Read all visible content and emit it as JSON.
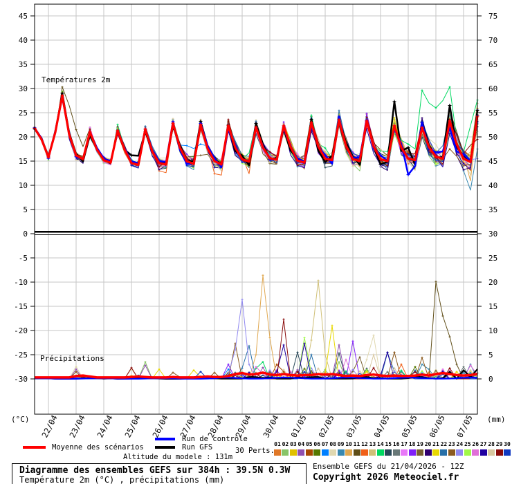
{
  "chart": {
    "temp_label": "Températures 2m",
    "precip_label": "Précipitations",
    "left_unit": "(°C)",
    "right_unit": "(mm)",
    "x_labels": [
      "22/04",
      "23/04",
      "24/04",
      "25/04",
      "26/04",
      "27/04",
      "28/04",
      "29/04",
      "30/04",
      "01/05",
      "02/05",
      "03/05",
      "04/05",
      "05/05",
      "06/05",
      "07/05"
    ],
    "left_ticks_temp": [
      45,
      40,
      35,
      30,
      25,
      20,
      15,
      10,
      5,
      0
    ],
    "left_ticks_precip": [
      -5,
      -10,
      -15,
      -20,
      -25,
      -30
    ],
    "right_ticks_temp": [
      75,
      70,
      65,
      60,
      55,
      50,
      45,
      40,
      35,
      30
    ],
    "right_ticks_precip": [
      25,
      20,
      15,
      10,
      5,
      0
    ],
    "grid_color": "#c6c6c6",
    "axis_color": "#000000"
  },
  "legend": {
    "mean_label": "Moyenne des scénarios",
    "mean_color": "#ff0000",
    "control_label": "Run de contrôle",
    "control_color": "#0000ff",
    "gfs_label": "Run GFS",
    "gfs_color": "#000000",
    "perts_label": "30 Perts.",
    "members": [
      {
        "num": "01",
        "color": "#E07828"
      },
      {
        "num": "02",
        "color": "#88C468"
      },
      {
        "num": "03",
        "color": "#E0C000"
      },
      {
        "num": "04",
        "color": "#9050B0"
      },
      {
        "num": "05",
        "color": "#A84800"
      },
      {
        "num": "06",
        "color": "#567800"
      },
      {
        "num": "07",
        "color": "#0080FF"
      },
      {
        "num": "08",
        "color": "#E0D8B0"
      },
      {
        "num": "09",
        "color": "#3888B0"
      },
      {
        "num": "10",
        "color": "#E0A850"
      },
      {
        "num": "11",
        "color": "#604E18"
      },
      {
        "num": "12",
        "color": "#F06018"
      },
      {
        "num": "13",
        "color": "#D0C078"
      },
      {
        "num": "14",
        "color": "#00D860"
      },
      {
        "num": "15",
        "color": "#284858"
      },
      {
        "num": "16",
        "color": "#687878"
      },
      {
        "num": "17",
        "color": "#E878F8"
      },
      {
        "num": "18",
        "color": "#8020F8"
      },
      {
        "num": "19",
        "color": "#786030"
      },
      {
        "num": "20",
        "color": "#300070"
      },
      {
        "num": "21",
        "color": "#E8D800"
      },
      {
        "num": "22",
        "color": "#2870A8"
      },
      {
        "num": "23",
        "color": "#8B5A20"
      },
      {
        "num": "24",
        "color": "#9088F0"
      },
      {
        "num": "25",
        "color": "#A0F848"
      },
      {
        "num": "26",
        "color": "#E070D8"
      },
      {
        "num": "27",
        "color": "#2000A0"
      },
      {
        "num": "28",
        "color": "#D8C8A0"
      },
      {
        "num": "29",
        "color": "#880808"
      },
      {
        "num": "30",
        "color": "#1038C0"
      }
    ]
  },
  "altitude_note": "Altitude du modele : 131m",
  "footer": {
    "line1": "Diagramme des ensembles GEFS sur 384h : 39.5N 0.3W",
    "line2": "Température 2m (°C) , précipitations (mm)"
  },
  "run_info": {
    "line1": "Ensemble GEFS du 21/04/2026 - 12Z",
    "line2": "Copyright 2026 Meteociel.fr"
  },
  "chart_data": [
    {
      "type": "line",
      "name": "temperature_2m",
      "title": "Températures 2m",
      "x_start": "21/04 12Z",
      "x_step_hours": 6,
      "x_total_hours": 384,
      "ylabel": "°C",
      "ylim_left": [
        0,
        47
      ],
      "ylim_right": [
        30,
        77
      ],
      "grid": true,
      "mean": [
        21.8,
        19.5,
        15.8,
        21.0,
        28.5,
        20.5,
        16.2,
        15.4,
        21.0,
        17.4,
        15.2,
        14.7,
        21.3,
        17.4,
        14.6,
        14.2,
        21.6,
        17.0,
        14.6,
        14.3,
        22.8,
        17.8,
        15.0,
        14.4,
        22.5,
        17.6,
        15.0,
        14.3,
        22.3,
        17.8,
        15.4,
        14.9,
        22.0,
        17.8,
        15.6,
        15.3,
        22.3,
        17.9,
        15.1,
        14.7,
        23.0,
        18.0,
        15.5,
        15.2,
        23.5,
        18.2,
        15.4,
        15.0,
        23.3,
        18.0,
        15.4,
        15.0,
        22.3,
        17.8,
        15.5,
        15.2,
        21.9,
        17.9,
        15.9,
        15.5,
        23.3,
        18.5,
        15.5,
        14.8,
        24.3
      ],
      "spread": [
        0.4,
        0.6,
        0.7,
        0.8,
        1.2,
        1.2,
        1.0,
        0.9,
        1.2,
        1.0,
        0.9,
        0.9,
        1.1,
        1.0,
        1.0,
        1.0,
        1.0,
        1.2,
        1.3,
        1.3,
        1.3,
        1.5,
        1.5,
        1.5,
        1.5,
        1.5,
        1.5,
        1.5,
        1.5,
        1.6,
        1.6,
        1.6,
        1.6,
        1.7,
        1.7,
        1.7,
        1.5,
        1.7,
        1.8,
        1.8,
        1.8,
        1.8,
        1.9,
        1.9,
        1.8,
        2.0,
        2.0,
        2.0,
        1.8,
        2.0,
        2.1,
        2.1,
        2.2,
        2.2,
        2.2,
        2.2,
        2.4,
        2.4,
        2.4,
        2.4,
        3.2,
        3.0,
        2.8,
        3.0,
        3.3
      ],
      "control_overrides": [
        [
          54,
          12.2
        ],
        [
          55,
          14.0
        ],
        [
          56,
          23.0
        ],
        [
          57,
          17.5
        ],
        [
          58,
          16.8
        ],
        [
          59,
          17.0
        ],
        [
          60,
          21.9
        ],
        [
          61,
          17.0
        ],
        [
          62,
          16.4
        ],
        [
          63,
          15.0
        ],
        [
          64,
          24.4
        ]
      ],
      "gfs_overrides": [
        [
          14,
          16.2
        ],
        [
          15,
          16.1
        ],
        [
          52,
          27.3
        ],
        [
          54,
          17.8
        ],
        [
          60,
          26.5
        ],
        [
          64,
          25.5
        ]
      ],
      "member_overrides": [
        [
          11,
          4,
          30.3
        ],
        [
          11,
          5,
          26.5
        ],
        [
          11,
          6,
          21.5
        ],
        [
          11,
          7,
          18.0
        ],
        [
          7,
          21,
          18.3
        ],
        [
          7,
          22,
          18.2
        ],
        [
          7,
          23,
          17.6
        ],
        [
          7,
          24,
          18.5
        ],
        [
          19,
          22,
          15.9
        ],
        [
          19,
          23,
          16.0
        ],
        [
          19,
          24,
          16.2
        ],
        [
          19,
          25,
          16.4
        ],
        [
          12,
          18,
          13.0
        ],
        [
          12,
          19,
          12.6
        ],
        [
          12,
          26,
          12.4
        ],
        [
          12,
          27,
          12.1
        ],
        [
          12,
          31,
          12.4
        ],
        [
          14,
          54,
          18.5
        ],
        [
          14,
          55,
          17.5
        ],
        [
          14,
          56,
          29.6
        ],
        [
          14,
          57,
          27.0
        ],
        [
          14,
          58,
          26.0
        ],
        [
          14,
          59,
          27.5
        ],
        [
          14,
          60,
          30.3
        ],
        [
          14,
          61,
          19.7
        ],
        [
          14,
          62,
          16.9
        ],
        [
          14,
          63,
          22.3
        ],
        [
          14,
          64,
          27.6
        ],
        [
          9,
          62,
          13.0
        ],
        [
          9,
          63,
          9.0
        ],
        [
          9,
          64,
          17.5
        ],
        [
          10,
          63,
          10.9
        ],
        [
          24,
          62,
          15.2
        ],
        [
          24,
          63,
          15.3
        ],
        [
          24,
          64,
          15.5
        ],
        [
          29,
          63,
          18.3
        ],
        [
          29,
          64,
          19.5
        ],
        [
          23,
          60,
          17.5
        ],
        [
          23,
          61,
          16.0
        ],
        [
          23,
          62,
          14.0
        ]
      ]
    },
    {
      "type": "line",
      "name": "precipitation",
      "title": "Précipitations",
      "unit": "mm",
      "ylim": [
        0,
        30
      ],
      "grid": true,
      "mean": [
        0.3,
        0.3,
        0.3,
        0.3,
        0.3,
        0.3,
        0.6,
        0.7,
        0.5,
        0.3,
        0.3,
        0.3,
        0.3,
        0.3,
        0.4,
        0.5,
        0.4,
        0.3,
        0.3,
        0.3,
        0.4,
        0.3,
        0.3,
        0.3,
        0.4,
        0.5,
        0.4,
        0.4,
        0.6,
        1.0,
        1.2,
        0.9,
        1.0,
        1.3,
        0.9,
        0.8,
        1.0,
        0.8,
        0.7,
        0.8,
        0.8,
        1.0,
        0.9,
        1.0,
        0.8,
        0.6,
        0.7,
        0.6,
        0.8,
        0.9,
        0.7,
        0.6,
        0.7,
        0.6,
        0.6,
        0.7,
        0.9,
        0.7,
        1.0,
        1.2,
        1.0,
        0.8,
        0.7,
        0.8,
        1.0
      ],
      "activity": [
        0.1,
        0.1,
        0.1,
        0.1,
        0.2,
        0.3,
        1.0,
        0.9,
        0.5,
        0.2,
        0.2,
        0.2,
        0.3,
        0.3,
        0.8,
        0.8,
        0.7,
        0.4,
        0.3,
        0.3,
        0.5,
        0.4,
        0.4,
        0.4,
        0.7,
        0.8,
        0.7,
        0.7,
        1.5,
        2.0,
        2.0,
        2.0,
        2.2,
        2.2,
        2.0,
        2.0,
        2.2,
        2.0,
        2.0,
        2.2,
        2.2,
        2.2,
        2.2,
        2.2,
        2.2,
        2.0,
        2.0,
        2.0,
        2.2,
        2.2,
        2.0,
        2.0,
        2.0,
        1.8,
        1.8,
        1.8,
        2.0,
        1.8,
        2.2,
        2.2,
        2.2,
        1.8,
        1.6,
        1.6,
        1.6
      ],
      "member_spikes": [
        [
          8,
          6,
          2.6
        ],
        [
          4,
          6,
          2.0
        ],
        [
          23,
          6,
          1.5
        ],
        [
          29,
          14,
          2.3
        ],
        [
          8,
          14,
          2.0
        ],
        [
          2,
          16,
          3.5
        ],
        [
          4,
          16,
          2.8
        ],
        [
          21,
          18,
          2.0
        ],
        [
          23,
          20,
          1.3
        ],
        [
          21,
          23,
          1.8
        ],
        [
          30,
          24,
          1.5
        ],
        [
          23,
          26,
          1.3
        ],
        [
          7,
          28,
          2.0
        ],
        [
          18,
          28,
          3.0
        ],
        [
          23,
          29,
          7.3
        ],
        [
          24,
          29,
          6.0
        ],
        [
          24,
          30,
          16.4
        ],
        [
          24,
          31,
          3.0
        ],
        [
          22,
          31,
          6.8
        ],
        [
          26,
          32,
          2.5
        ],
        [
          10,
          32,
          5.0
        ],
        [
          10,
          33,
          21.4
        ],
        [
          10,
          34,
          8.5
        ],
        [
          14,
          33,
          3.5
        ],
        [
          5,
          35,
          3.0
        ],
        [
          29,
          36,
          12.3
        ],
        [
          27,
          36,
          7.0
        ],
        [
          15,
          38,
          5.5
        ],
        [
          25,
          39,
          8.5
        ],
        [
          27,
          39,
          7.3
        ],
        [
          22,
          40,
          5.0
        ],
        [
          13,
          40,
          8.0
        ],
        [
          13,
          41,
          20.3
        ],
        [
          13,
          42,
          5.0
        ],
        [
          21,
          43,
          11.0
        ],
        [
          4,
          44,
          7.0
        ],
        [
          2,
          44,
          3.5
        ],
        [
          15,
          44,
          5.3
        ],
        [
          26,
          45,
          4.0
        ],
        [
          18,
          46,
          7.8
        ],
        [
          19,
          47,
          4.5
        ],
        [
          8,
          48,
          4.0
        ],
        [
          8,
          49,
          9.0
        ],
        [
          28,
          49,
          5.0
        ],
        [
          22,
          51,
          5.4
        ],
        [
          27,
          51,
          5.5
        ],
        [
          23,
          52,
          5.5
        ],
        [
          12,
          53,
          3.0
        ],
        [
          6,
          55,
          2.5
        ],
        [
          23,
          56,
          4.4
        ],
        [
          9,
          56,
          3.0
        ],
        [
          11,
          58,
          20.1
        ],
        [
          11,
          59,
          13.0
        ],
        [
          11,
          60,
          8.7
        ],
        [
          11,
          61,
          3.0
        ],
        [
          16,
          62,
          2.5
        ],
        [
          9,
          63,
          3.0
        ],
        [
          26,
          63,
          2.8
        ]
      ],
      "control_overrides": [],
      "gfs_overrides": [
        [
          60,
          1.5
        ],
        [
          62,
          1.8
        ],
        [
          64,
          2.0
        ]
      ]
    }
  ]
}
